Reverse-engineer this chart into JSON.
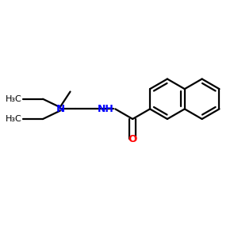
{
  "bg_color": "#ffffff",
  "bond_color": "#000000",
  "N_color": "#0000ff",
  "O_color": "#ff0000",
  "lw": 1.6,
  "figsize": [
    3.0,
    3.0
  ],
  "dpi": 100,
  "xlim": [
    -0.1,
    1.0
  ],
  "ylim": [
    -0.1,
    1.0
  ]
}
